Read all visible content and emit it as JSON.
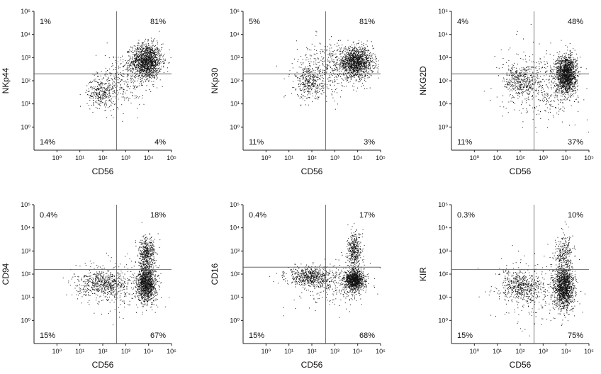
{
  "figure": {
    "type": "flow-cytometry-dot-plot-grid",
    "point_color": "#111111",
    "axis_color": "#222222"
  },
  "chart_data": [
    {
      "type": "scatter",
      "ylabel": "NKp44",
      "xlabel": "CD56",
      "xlim_log10": [
        -1,
        5
      ],
      "ylim_log10": [
        -1,
        5
      ],
      "x_ticks": [
        "10⁰",
        "10¹",
        "10²",
        "10³",
        "10⁴",
        "10⁵"
      ],
      "y_ticks": [
        "10⁰",
        "10¹",
        "10²",
        "10³",
        "10⁴",
        "10⁵"
      ],
      "gate": {
        "x_log10": 2.6,
        "y_log10": 2.3
      },
      "quadrants": {
        "top_left": "1%",
        "top_right": "81%",
        "bottom_left": "14%",
        "bottom_right": "4%"
      },
      "populations": [
        {
          "x_log10": 3.9,
          "y_log10": 2.85,
          "sx": 0.33,
          "sy": 0.38,
          "n": 1500
        },
        {
          "x_log10": 1.9,
          "y_log10": 1.5,
          "sx": 0.3,
          "sy": 0.32,
          "n": 300
        },
        {
          "x_log10": 2.8,
          "y_log10": 2.0,
          "sx": 0.55,
          "sy": 0.6,
          "n": 300
        }
      ]
    },
    {
      "type": "scatter",
      "ylabel": "NKp30",
      "xlabel": "CD56",
      "xlim_log10": [
        -1,
        5
      ],
      "ylim_log10": [
        -1,
        5
      ],
      "x_ticks": [
        "10⁰",
        "10¹",
        "10²",
        "10³",
        "10⁴",
        "10⁵"
      ],
      "y_ticks": [
        "10⁰",
        "10¹",
        "10²",
        "10³",
        "10⁴",
        "10⁵"
      ],
      "gate": {
        "x_log10": 2.6,
        "y_log10": 2.3
      },
      "quadrants": {
        "top_left": "5%",
        "top_right": "81%",
        "bottom_left": "11%",
        "bottom_right": "3%"
      },
      "populations": [
        {
          "x_log10": 3.9,
          "y_log10": 2.8,
          "sx": 0.38,
          "sy": 0.32,
          "n": 1400
        },
        {
          "x_log10": 1.9,
          "y_log10": 1.9,
          "sx": 0.3,
          "sy": 0.35,
          "n": 300
        },
        {
          "x_log10": 2.6,
          "y_log10": 2.5,
          "sx": 0.7,
          "sy": 0.6,
          "n": 400
        }
      ]
    },
    {
      "type": "scatter",
      "ylabel": "NKG2D",
      "xlabel": "CD56",
      "xlim_log10": [
        -1,
        5
      ],
      "ylim_log10": [
        -1,
        5
      ],
      "x_ticks": [
        "10⁰",
        "10¹",
        "10²",
        "10³",
        "10⁴",
        "10⁵"
      ],
      "y_ticks": [
        "10⁰",
        "10¹",
        "10²",
        "10³",
        "10⁴",
        "10⁵"
      ],
      "gate": {
        "x_log10": 2.6,
        "y_log10": 2.3
      },
      "quadrants": {
        "top_left": "4%",
        "top_right": "48%",
        "bottom_left": "11%",
        "bottom_right": "37%"
      },
      "populations": [
        {
          "x_log10": 4.0,
          "y_log10": 2.3,
          "sx": 0.22,
          "sy": 0.4,
          "n": 1600
        },
        {
          "x_log10": 2.0,
          "y_log10": 2.0,
          "sx": 0.35,
          "sy": 0.35,
          "n": 300
        },
        {
          "x_log10": 2.8,
          "y_log10": 1.8,
          "sx": 0.8,
          "sy": 0.7,
          "n": 500
        }
      ]
    },
    {
      "type": "scatter",
      "ylabel": "CD94",
      "xlabel": "CD56",
      "xlim_log10": [
        -1,
        5
      ],
      "ylim_log10": [
        -1,
        5
      ],
      "x_ticks": [
        "10⁰",
        "10¹",
        "10²",
        "10³",
        "10⁴",
        "10⁵"
      ],
      "y_ticks": [
        "10⁰",
        "10¹",
        "10²",
        "10³",
        "10⁴",
        "10⁵"
      ],
      "gate": {
        "x_log10": 2.6,
        "y_log10": 2.2
      },
      "quadrants": {
        "top_left": "0.4%",
        "top_right": "18%",
        "bottom_left": "15%",
        "bottom_right": "67%"
      },
      "populations": [
        {
          "x_log10": 3.9,
          "y_log10": 1.6,
          "sx": 0.2,
          "sy": 0.4,
          "n": 1200
        },
        {
          "x_log10": 3.9,
          "y_log10": 2.9,
          "sx": 0.18,
          "sy": 0.35,
          "n": 450
        },
        {
          "x_log10": 2.0,
          "y_log10": 1.6,
          "sx": 0.55,
          "sy": 0.25,
          "n": 500
        },
        {
          "x_log10": 2.7,
          "y_log10": 1.5,
          "sx": 0.9,
          "sy": 0.6,
          "n": 300
        }
      ]
    },
    {
      "type": "scatter",
      "ylabel": "CD16",
      "xlabel": "CD56",
      "xlim_log10": [
        -1,
        5
      ],
      "ylim_log10": [
        -1,
        5
      ],
      "x_ticks": [
        "10⁰",
        "10¹",
        "10²",
        "10³",
        "10⁴",
        "10⁵"
      ],
      "y_ticks": [
        "10⁰",
        "10¹",
        "10²",
        "10³",
        "10⁴",
        "10⁵"
      ],
      "gate": {
        "x_log10": 2.6,
        "y_log10": 2.3
      },
      "quadrants": {
        "top_left": "0.4%",
        "top_right": "17%",
        "bottom_left": "15%",
        "bottom_right": "68%"
      },
      "populations": [
        {
          "x_log10": 3.85,
          "y_log10": 1.75,
          "sx": 0.2,
          "sy": 0.22,
          "n": 1100
        },
        {
          "x_log10": 3.85,
          "y_log10": 3.0,
          "sx": 0.15,
          "sy": 0.4,
          "n": 400
        },
        {
          "x_log10": 1.9,
          "y_log10": 1.9,
          "sx": 0.5,
          "sy": 0.2,
          "n": 550
        },
        {
          "x_log10": 2.8,
          "y_log10": 1.6,
          "sx": 0.8,
          "sy": 0.5,
          "n": 300
        }
      ]
    },
    {
      "type": "scatter",
      "ylabel": "KIR",
      "xlabel": "CD56",
      "xlim_log10": [
        -1,
        5
      ],
      "ylim_log10": [
        -1,
        5
      ],
      "x_ticks": [
        "10⁰",
        "10¹",
        "10²",
        "10³",
        "10⁴",
        "10⁵"
      ],
      "y_ticks": [
        "10⁰",
        "10¹",
        "10²",
        "10³",
        "10⁴",
        "10⁵"
      ],
      "gate": {
        "x_log10": 2.6,
        "y_log10": 2.2
      },
      "quadrants": {
        "top_left": "0.3%",
        "top_right": "10%",
        "bottom_left": "15%",
        "bottom_right": "75%"
      },
      "populations": [
        {
          "x_log10": 3.9,
          "y_log10": 1.4,
          "sx": 0.22,
          "sy": 0.45,
          "n": 1300
        },
        {
          "x_log10": 3.9,
          "y_log10": 2.8,
          "sx": 0.2,
          "sy": 0.5,
          "n": 300
        },
        {
          "x_log10": 2.0,
          "y_log10": 1.5,
          "sx": 0.45,
          "sy": 0.3,
          "n": 450
        },
        {
          "x_log10": 2.7,
          "y_log10": 1.3,
          "sx": 0.9,
          "sy": 0.7,
          "n": 300
        }
      ]
    }
  ]
}
